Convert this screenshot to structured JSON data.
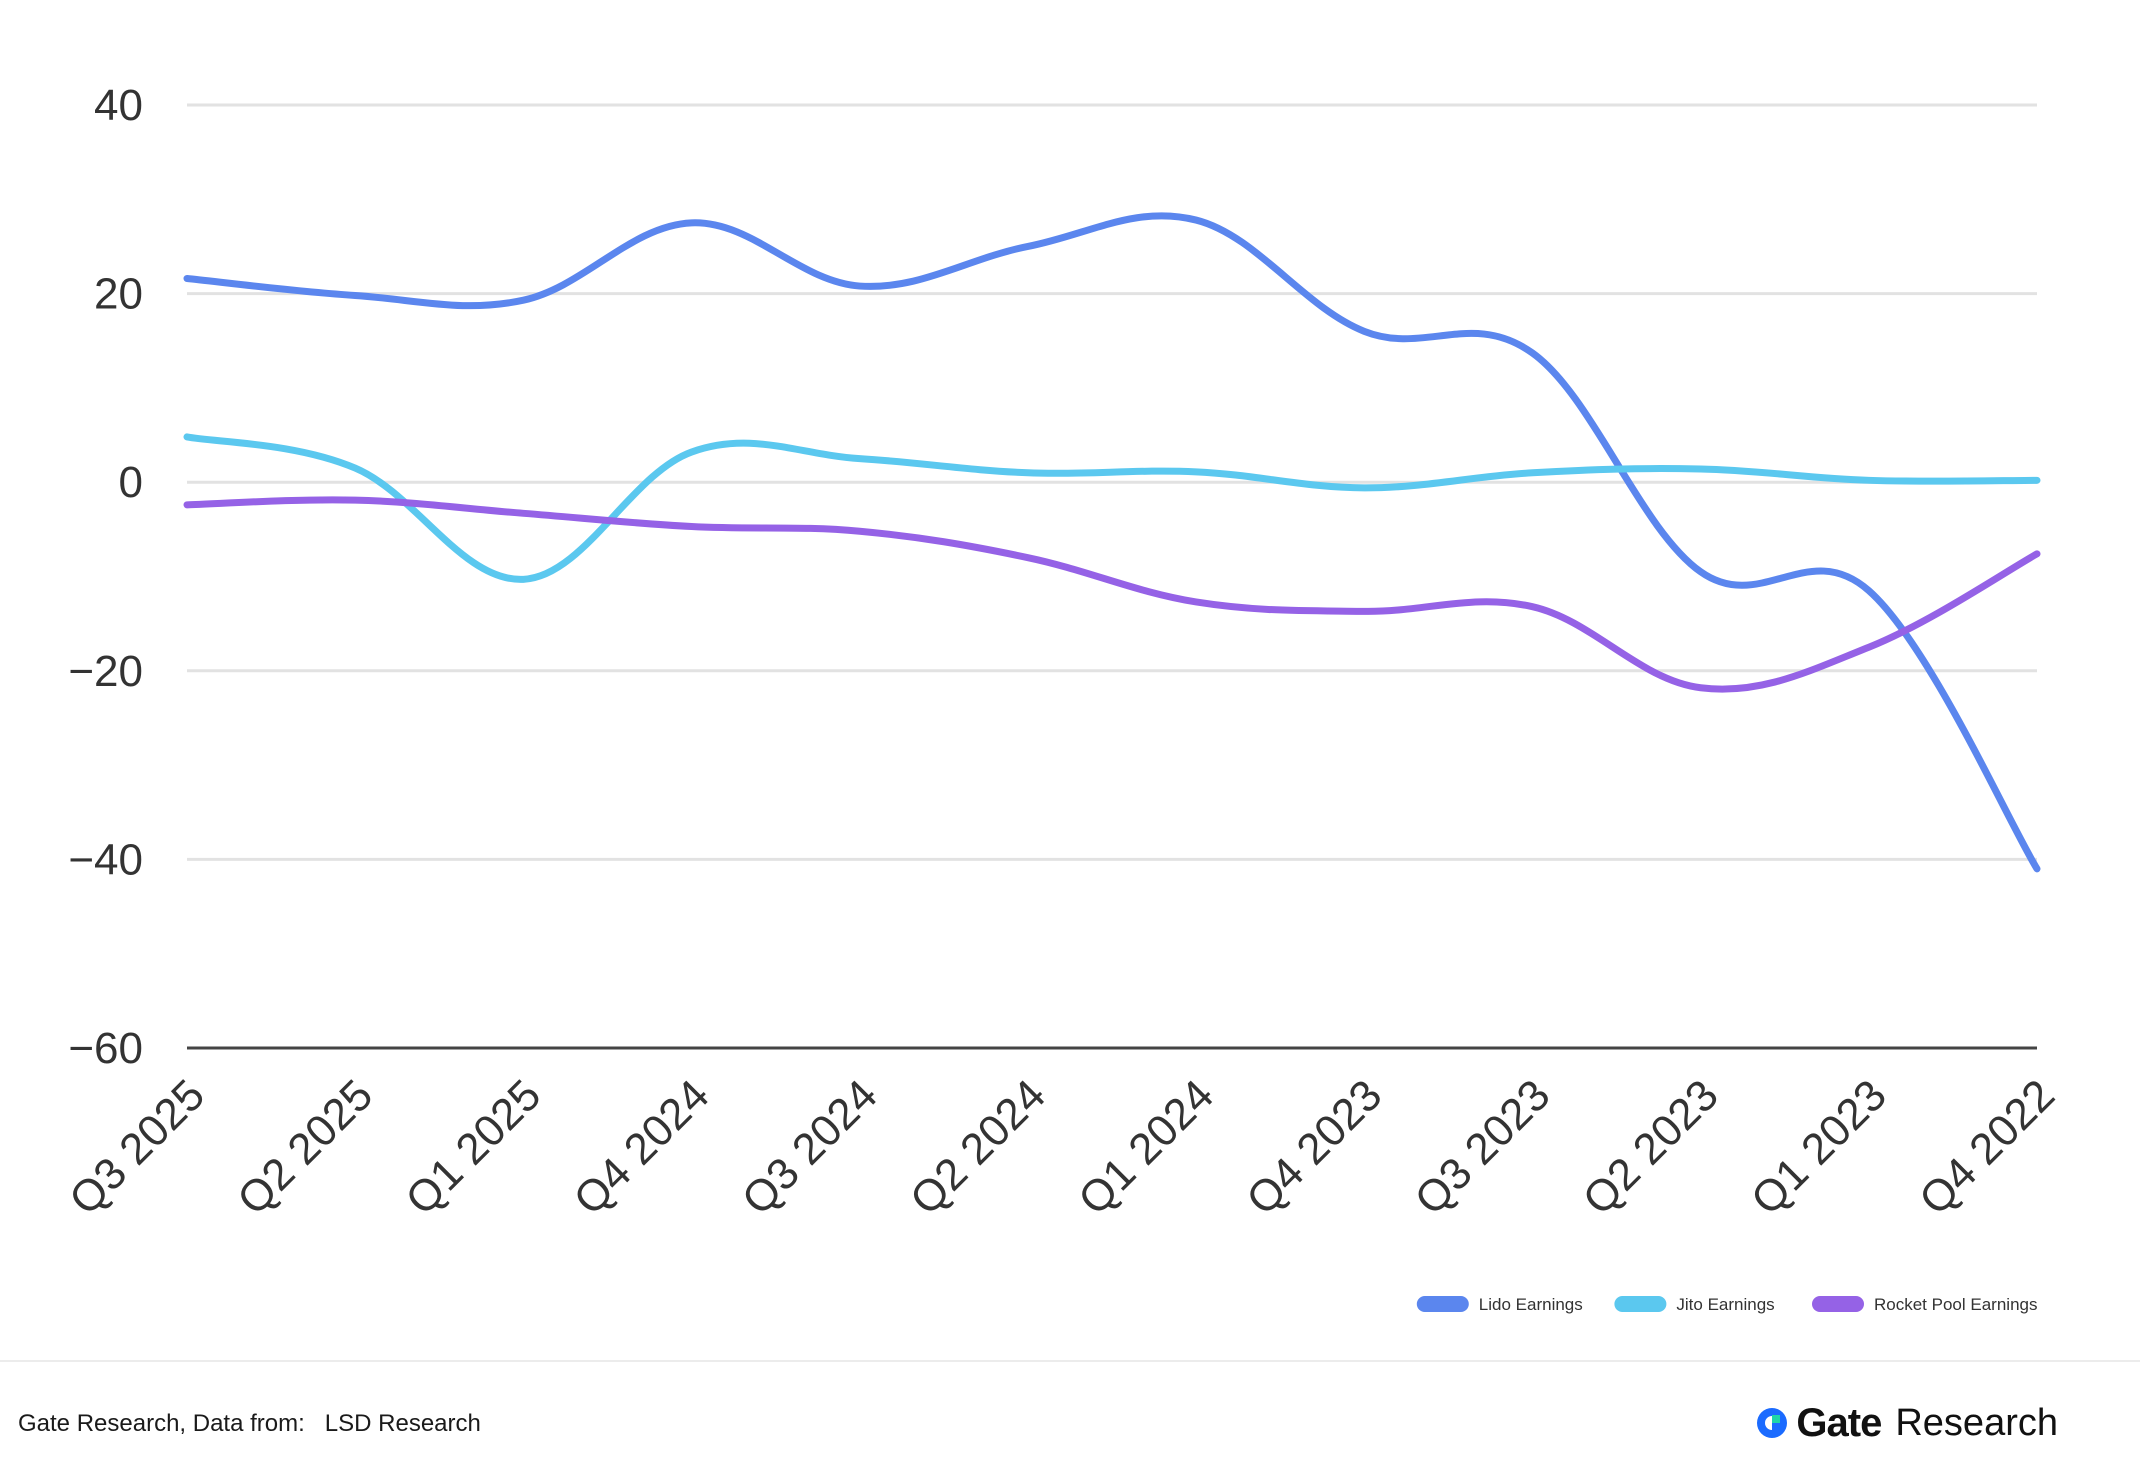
{
  "chart_data": {
    "type": "line",
    "categories": [
      "Q3 2025",
      "Q2 2025",
      "Q1 2025",
      "Q4 2024",
      "Q3 2024",
      "Q2 2024",
      "Q1 2024",
      "Q4 2023",
      "Q3 2023",
      "Q2 2023",
      "Q1 2023",
      "Q4 2022"
    ],
    "series": [
      {
        "name": "Lido Earnings",
        "color": "#5b86ee",
        "values": [
          21.6,
          19.8,
          19.3,
          27.5,
          20.8,
          25.0,
          27.8,
          16.0,
          13.7,
          -9.5,
          -11.5,
          -41.0
        ]
      },
      {
        "name": "Jito Earnings",
        "color": "#5bc8ef",
        "values": [
          4.8,
          1.5,
          -10.3,
          3.2,
          2.5,
          1.0,
          1.1,
          -0.6,
          1.0,
          1.4,
          0.2,
          0.2
        ]
      },
      {
        "name": "Rocket Pool Earnings",
        "color": "#9562e6",
        "values": [
          -2.4,
          -1.9,
          -3.3,
          -4.7,
          -5.2,
          -8.0,
          -12.7,
          -13.7,
          -13.2,
          -21.8,
          -17.5,
          -7.6
        ]
      }
    ],
    "yticks": [
      40,
      20,
      0,
      -20,
      -40,
      -60
    ],
    "ylim": [
      -60,
      40
    ],
    "grid": true,
    "legend": "bottom-right",
    "title": "",
    "xlabel": "",
    "ylabel": ""
  },
  "footer": {
    "source_prefix": "Gate Research, Data from:",
    "source_name": "LSD Research",
    "brand_name": "Gate",
    "brand_suffix": "Research",
    "brand_color": "#1b6bff",
    "brand_accent": "#1fd6a8"
  }
}
